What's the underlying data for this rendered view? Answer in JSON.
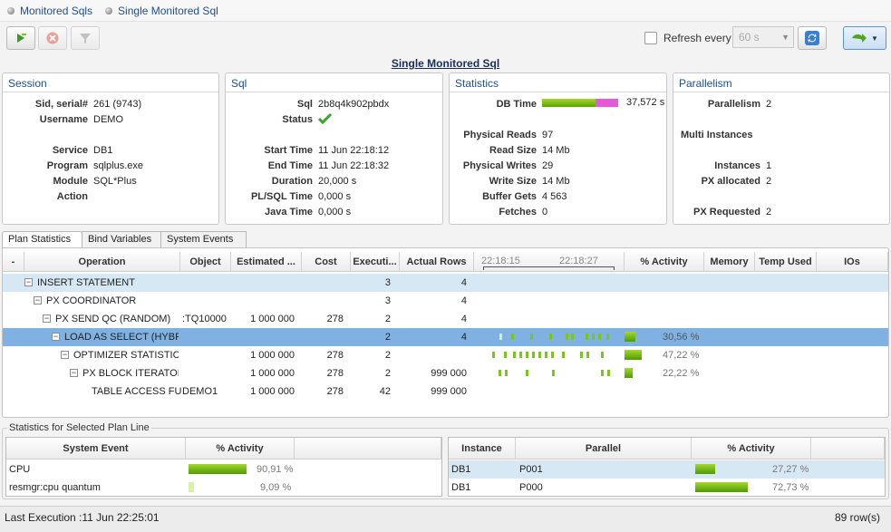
{
  "breadcrumb": [
    "Monitored Sqls",
    "Single Monitored Sql"
  ],
  "toolbar": {
    "refresh_label": "Refresh every",
    "interval_placeholder": "60 s"
  },
  "page_title": "Single Monitored Sql",
  "session": {
    "title": "Session",
    "fields": [
      {
        "k": "Sid, serial#",
        "v": "261 (9743)"
      },
      {
        "k": "Username",
        "v": "DEMO"
      },
      {
        "k": "Service",
        "v": "DB1"
      },
      {
        "k": "Program",
        "v": "sqlplus.exe"
      },
      {
        "k": "Module",
        "v": "SQL*Plus"
      },
      {
        "k": "Action",
        "v": ""
      }
    ]
  },
  "sql": {
    "title": "Sql",
    "fields": [
      {
        "k": "Sql",
        "v": "2b8q4k902pbdx"
      },
      {
        "k": "Status",
        "v": ""
      },
      {
        "k": "Start Time",
        "v": "11 Jun  22:18:12"
      },
      {
        "k": "End Time",
        "v": "11 Jun  22:18:32"
      },
      {
        "k": "Duration",
        "v": "20,000  s"
      },
      {
        "k": "PL/SQL Time",
        "v": "0,000  s"
      },
      {
        "k": "Java Time",
        "v": "0,000  s"
      }
    ]
  },
  "statistics": {
    "title": "Statistics",
    "db_time_label": "DB Time",
    "db_time_value": "37,572 s",
    "db_time_green_fraction": 0.7,
    "fields": [
      {
        "k": "Physical Reads",
        "v": "97"
      },
      {
        "k": "Read Size",
        "v": "14 Mb"
      },
      {
        "k": "Physical Writes",
        "v": "29"
      },
      {
        "k": "Write Size",
        "v": "14 Mb"
      },
      {
        "k": "Buffer Gets",
        "v": "4 563"
      },
      {
        "k": "Fetches",
        "v": "0"
      }
    ]
  },
  "parallelism": {
    "title": "Parallelism",
    "fields": [
      {
        "k": "Parallelism",
        "v": "2"
      },
      {
        "k": "Multi Instances",
        "v": ""
      },
      {
        "k": "Instances",
        "v": "1"
      },
      {
        "k": "PX allocated",
        "v": "2"
      },
      {
        "k": "PX Requested",
        "v": "2"
      }
    ]
  },
  "tabs": [
    "Plan Statistics",
    "Bind Variables",
    "System Events"
  ],
  "plan": {
    "headers": {
      "collapse": "-",
      "operation": "Operation",
      "object": "Object",
      "estimated": "Estimated ...",
      "cost": "Cost",
      "executions": "Executi...",
      "actual_rows": "Actual Rows",
      "timeline_start": "22:18:15",
      "timeline_end": "22:18:27",
      "activity": "% Activity",
      "memory": "Memory",
      "temp_used": "Temp Used",
      "ios": "IOs"
    },
    "rows": [
      {
        "operation": "INSERT STATEMENT",
        "object": "",
        "estimated": "",
        "cost": "",
        "executions": "3",
        "actual_rows": "4",
        "activity_pct": "",
        "activity": 0
      },
      {
        "operation": "PX COORDINATOR",
        "object": "",
        "estimated": "",
        "cost": "",
        "executions": "3",
        "actual_rows": "4",
        "activity_pct": "",
        "activity": 0
      },
      {
        "operation": "PX SEND QC (RANDOM)",
        "object": ":TQ10000",
        "estimated": "1 000 000",
        "cost": "278",
        "executions": "2",
        "actual_rows": "4",
        "activity_pct": "",
        "activity": 0
      },
      {
        "operation": "LOAD AS SELECT (HYBRID",
        "object": "",
        "estimated": "",
        "cost": "",
        "executions": "2",
        "actual_rows": "4",
        "activity_pct": "30,56 %",
        "activity": 30.56
      },
      {
        "operation": "OPTIMIZER STATISTICS",
        "object": "",
        "estimated": "1 000 000",
        "cost": "278",
        "executions": "2",
        "actual_rows": "",
        "activity_pct": "47,22 %",
        "activity": 47.22
      },
      {
        "operation": "PX BLOCK ITERATOR",
        "object": "",
        "estimated": "1 000 000",
        "cost": "278",
        "executions": "2",
        "actual_rows": "999 000",
        "activity_pct": "22,22 %",
        "activity": 22.22
      },
      {
        "operation": "TABLE ACCESS FUL",
        "object": "DEMO1",
        "estimated": "1 000 000",
        "cost": "278",
        "executions": "42",
        "actual_rows": "999 000",
        "activity_pct": "",
        "activity": 0
      }
    ]
  },
  "selected_line": {
    "title": "Statistics for Selected Plan Line",
    "events_headers": {
      "event": "System Event",
      "activity": "% Activity"
    },
    "events": [
      {
        "event": "CPU",
        "pct": "90,91 %",
        "value": 90.91
      },
      {
        "event": "resmgr:cpu quantum",
        "pct": "9,09 %",
        "value": 9.09
      }
    ],
    "instances_headers": {
      "instance": "Instance",
      "parallel": "Parallel",
      "activity": "% Activity"
    },
    "instances": [
      {
        "instance": "DB1",
        "parallel": "P001",
        "pct": "27,27 %",
        "value": 27.27
      },
      {
        "instance": "DB1",
        "parallel": "P000",
        "pct": "72,73 %",
        "value": 72.73
      }
    ]
  },
  "status": {
    "last_execution": "Last Execution :11 Jun  22:25:01",
    "row_count": "89 row(s)"
  }
}
